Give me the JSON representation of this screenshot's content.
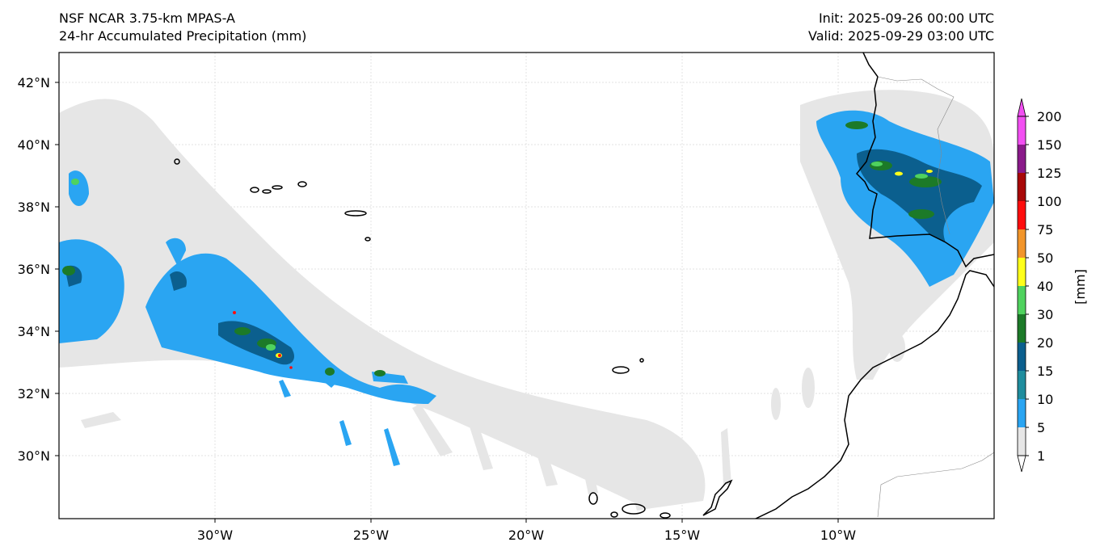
{
  "title_left": {
    "line1": "NSF NCAR 3.75-km MPAS-A",
    "line2": "24-hr Accumulated Precipitation (mm)"
  },
  "title_right": {
    "line1": "Init: 2025-09-26 00:00 UTC",
    "line2": "Valid: 2025-09-29 03:00 UTC"
  },
  "map": {
    "lon_ticks": [
      "30°W",
      "25°W",
      "20°W",
      "15°W",
      "10°W"
    ],
    "lat_ticks": [
      "42°N",
      "40°N",
      "38°N",
      "36°N",
      "34°N",
      "32°N",
      "30°N"
    ],
    "lon_range": [
      -35,
      -5
    ],
    "lat_range": [
      28,
      43
    ]
  },
  "colorbar": {
    "label": "[mm]",
    "levels": [
      "1",
      "5",
      "10",
      "15",
      "20",
      "30",
      "40",
      "50",
      "75",
      "100",
      "125",
      "150",
      "200"
    ],
    "colors": [
      "#e6e6e6",
      "#2aa5f2",
      "#1f8d9e",
      "#0b5f8e",
      "#1c7a28",
      "#4fd25e",
      "#ffff1a",
      "#f2952a",
      "#ff0d0d",
      "#a80808",
      "#8a1a8a",
      "#f24ff2"
    ]
  }
}
